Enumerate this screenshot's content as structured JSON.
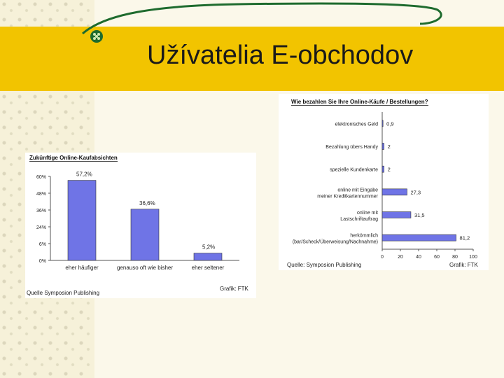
{
  "slide": {
    "title": "Užívatelia E-obchodov",
    "colors": {
      "band": "#f2c400",
      "bar": "#6f74e6",
      "swoosh": "#1e6b2e"
    }
  },
  "chart_data": [
    {
      "type": "bar",
      "title": "Zukünftige Online-Kaufabsichten",
      "categories": [
        "eher häufiger",
        "genauso oft wie bisher",
        "eher seltener"
      ],
      "values": [
        57.2,
        36.6,
        5.2
      ],
      "value_labels": [
        "57,2%",
        "36,6%",
        "5,2%"
      ],
      "ylim": [
        0,
        60
      ],
      "yticks": [
        "0%",
        "6%",
        "24%",
        "36%",
        "48%",
        "60%"
      ],
      "source": "Quelle Symposion Publishing",
      "credit": "Grafik: FTK"
    },
    {
      "type": "bar",
      "orientation": "horizontal",
      "title": "Wie bezahlen Sie Ihre Online-Käufe / Bestellungen?",
      "categories": [
        "elektronisches Geld",
        "Bezahlung übers Handy",
        "spezielle Kundenkarte",
        "online mit Eingabe meiner Kreditkartennummer",
        "online mit Lastschriftauftrag",
        "herkömmlich (bar/Scheck/Überweisung/Nachnahme)"
      ],
      "values": [
        0.9,
        2,
        2,
        27.3,
        31.5,
        81.2
      ],
      "value_labels": [
        "0,9",
        "2",
        "2",
        "27,3",
        "31,5",
        "81,2"
      ],
      "xlim": [
        0,
        100
      ],
      "xticks": [
        "0",
        "20",
        "40",
        "60",
        "80",
        "100"
      ],
      "source": "Quelle: Symposion Publishing",
      "credit": "Grafik: FTK"
    }
  ]
}
